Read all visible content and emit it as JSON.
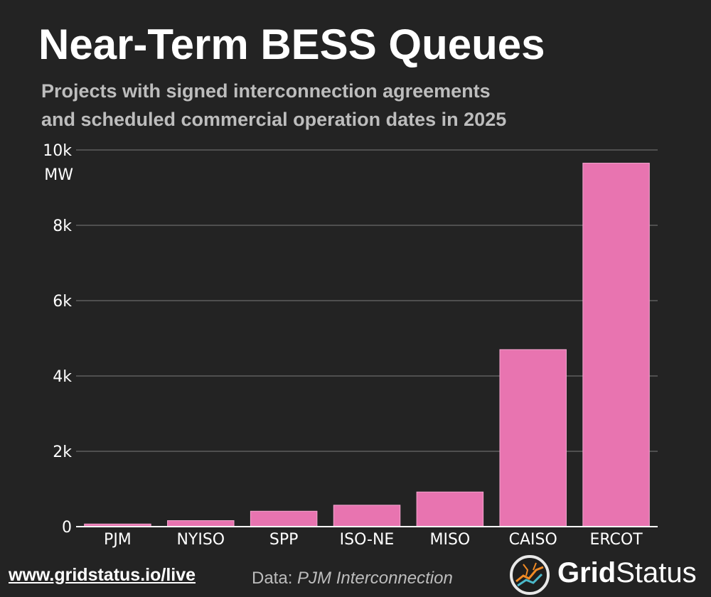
{
  "header": {
    "title": "Near-Term BESS Queues",
    "subtitle_line1": "Projects with signed interconnection agreements",
    "subtitle_line2": "and scheduled commercial operation dates in 2025"
  },
  "chart_data": {
    "type": "bar",
    "title": "Near-Term BESS Queues",
    "subtitle": "Projects with signed interconnection agreements and scheduled commercial operation dates in 2025",
    "xlabel": "",
    "ylabel": "MW",
    "categories": [
      "PJM",
      "NYISO",
      "SPP",
      "ISO-NE",
      "MISO",
      "CAISO",
      "ERCOT"
    ],
    "values": [
      70,
      160,
      410,
      570,
      920,
      4700,
      9650
    ],
    "ylim": [
      0,
      10000
    ],
    "yticks": [
      0,
      2000,
      4000,
      6000,
      8000,
      10000
    ],
    "ytick_labels": [
      "0",
      "2k",
      "4k",
      "6k",
      "8k",
      "10k"
    ],
    "grid": true,
    "legend": "none",
    "colors": {
      "bar": "#e874b0",
      "background": "#232323",
      "grid": "#6a6a6a",
      "text": "#ffffff"
    }
  },
  "footer": {
    "url": "www.gridstatus.io/live",
    "data_prefix": "Data:",
    "data_source": "PJM Interconnection",
    "brand_part1": "Grid",
    "brand_part2": "Status",
    "logo_icon": "grid-status-logo-icon"
  }
}
